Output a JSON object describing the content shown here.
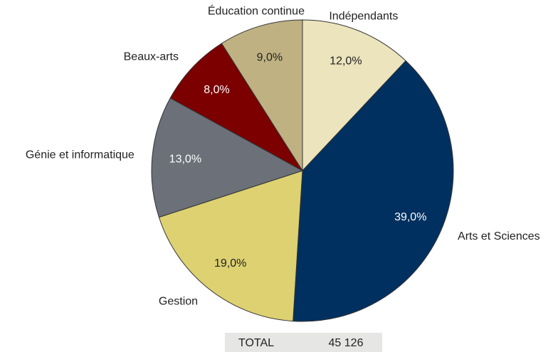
{
  "chart_data": {
    "type": "pie",
    "categories": [
      "Indépendants",
      "Arts et Sciences",
      "Gestion",
      "Génie et informatique",
      "Beaux-arts",
      "Éducation continue"
    ],
    "values": [
      12,
      39,
      19,
      13,
      8,
      9
    ],
    "value_labels": [
      "12,0%",
      "39,0%",
      "19,0%",
      "13,0%",
      "8,0%",
      "9,0%"
    ],
    "colors": [
      "#ece4bd",
      "#00305f",
      "#ddd172",
      "#6b7079",
      "#7c0000",
      "#bfb182"
    ],
    "total_label": "TOTAL",
    "total_value": "45 126"
  }
}
